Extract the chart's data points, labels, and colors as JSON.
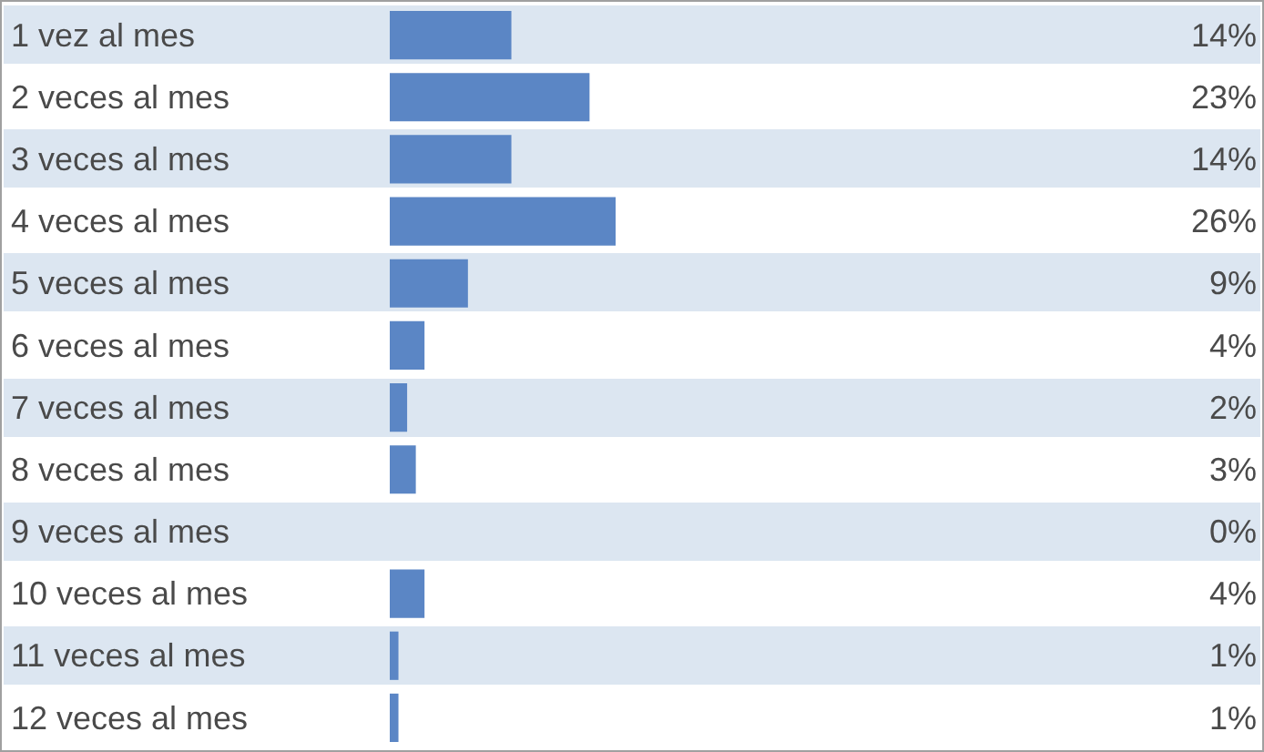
{
  "chart_data": {
    "type": "bar",
    "orientation": "horizontal",
    "categories": [
      "1 vez al mes",
      "2 veces al mes",
      "3 veces al mes",
      "4 veces al mes",
      "5 veces al mes",
      "6 veces al mes",
      "7 veces al mes",
      "8 veces al mes",
      "9 veces al mes",
      "10 veces al mes",
      "11 veces al mes",
      "12 veces al mes"
    ],
    "values": [
      14,
      23,
      14,
      26,
      9,
      4,
      2,
      3,
      0,
      4,
      1,
      1
    ],
    "value_labels": [
      "14%",
      "23%",
      "14%",
      "26%",
      "9%",
      "4%",
      "2%",
      "3%",
      "0%",
      "4%",
      "1%",
      "1%"
    ],
    "color": "#5b86c5"
  }
}
